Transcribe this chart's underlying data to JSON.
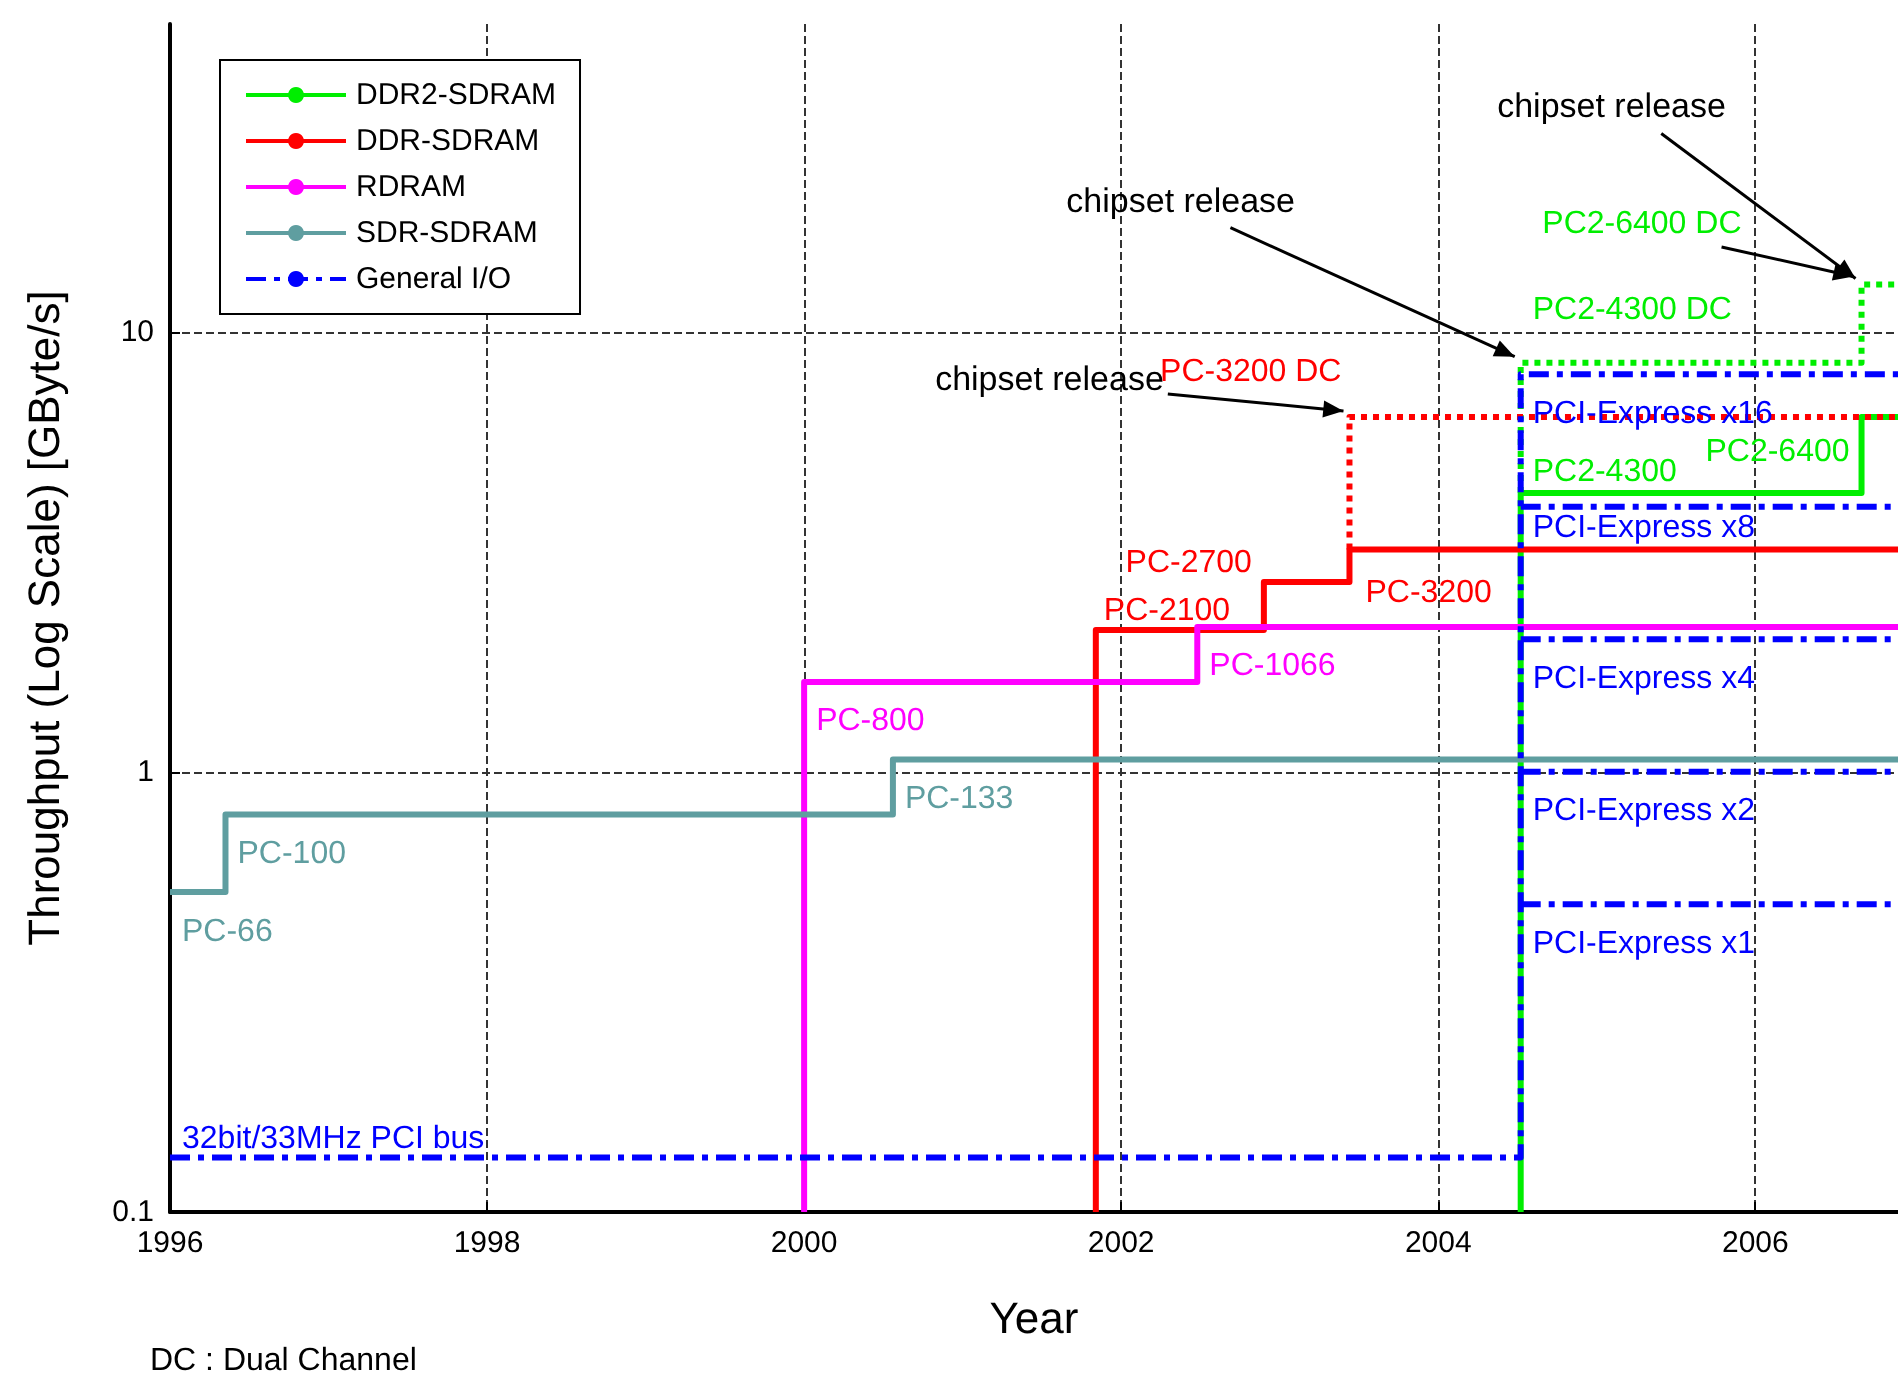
{
  "chart_data": {
    "type": "step",
    "xlabel": "Year",
    "ylabel": "Throughput (Log Scale) [GByte/s]",
    "xlim": [
      1996,
      2006.9
    ],
    "xticks": [
      1996,
      1998,
      2000,
      2002,
      2004,
      2006
    ],
    "ylim": [
      0.1,
      50
    ],
    "yticks": [
      0.1,
      1,
      10
    ],
    "log": true,
    "grid": true,
    "legend": "top left",
    "series": [
      {
        "name": "DDR2-SDRAM",
        "color": "#00ee00",
        "x": [
          2004.52,
          2004.52,
          2006.67,
          2006.9
        ],
        "values": [
          0.1,
          4.3,
          6.4,
          6.4
        ]
      },
      {
        "name": "DDR-SDRAM",
        "color": "#ff0000",
        "x": [
          2001.84,
          2001.84,
          2002.9,
          2003.44,
          2006.9
        ],
        "values": [
          0.1,
          2.1,
          2.7,
          3.2,
          3.2
        ]
      },
      {
        "name": "RDRAM",
        "color": "#ff00ff",
        "x": [
          2000,
          2000,
          2002.48,
          2006.9
        ],
        "values": [
          0.1,
          1.6,
          2.133,
          2.133
        ]
      },
      {
        "name": "SDR-SDRAM",
        "color": "#5f9ea0",
        "x": [
          1996,
          1996.35,
          2000.56,
          2006.9
        ],
        "values": [
          0.533,
          0.8,
          1.067,
          1.067
        ]
      },
      {
        "name": "General I/O",
        "color": "#0000ff",
        "line_style": "dashed",
        "x": [
          1996,
          2004.52,
          2004.52,
          2006.9
        ],
        "values": [
          0.133,
          0.133,
          8,
          8
        ]
      },
      {
        "color": "#0000ff",
        "line_style": "dashed",
        "x": [
          2004.52,
          2006.9
        ],
        "values": [
          4,
          4
        ]
      },
      {
        "color": "#0000ff",
        "line_style": "dashed",
        "x": [
          2004.52,
          2006.9
        ],
        "values": [
          2,
          2
        ]
      },
      {
        "color": "#0000ff",
        "line_style": "dashed",
        "x": [
          2004.52,
          2006.9
        ],
        "values": [
          1,
          1
        ]
      },
      {
        "color": "#0000ff",
        "line_style": "dashed",
        "x": [
          2004.52,
          2006.9
        ],
        "values": [
          0.5,
          0.5
        ]
      },
      {
        "color": "#00ee00",
        "line_style": "dotted",
        "x": [
          2004.52,
          2004.52,
          2006.67,
          2006.9
        ],
        "values": [
          4.3,
          8.5,
          12.8,
          12.8
        ]
      },
      {
        "color": "#ff0000",
        "line_style": "dotted",
        "x": [
          2003.44,
          2003.44,
          2006.9
        ],
        "values": [
          3.2,
          6.4,
          6.4
        ]
      }
    ],
    "annotations": [
      {
        "text": "chipset release",
        "x": 2003.44,
        "y": 6.4
      },
      {
        "text": "chipset release",
        "x": 2004.52,
        "y": 8.5
      },
      {
        "text": "chipset release",
        "x": 2006.67,
        "y": 12.8
      },
      {
        "text": "PC-66",
        "x": 1996,
        "y": 0.533
      },
      {
        "text": "PC-100",
        "x": 1996.35,
        "y": 0.8
      },
      {
        "text": "PC-133",
        "x": 2000.56,
        "y": 1.067
      },
      {
        "text": "PC-800",
        "x": 2000,
        "y": 1.6
      },
      {
        "text": "PC-1066",
        "x": 2002.48,
        "y": 2.133
      },
      {
        "text": "PC-2100",
        "x": 2001.84,
        "y": 2.1
      },
      {
        "text": "PC-2700",
        "x": 2002.9,
        "y": 2.7
      },
      {
        "text": "PC-3200",
        "x": 2003.44,
        "y": 3.2
      },
      {
        "text": "PC-3200 DC",
        "x": 2003.44,
        "y": 6.4
      },
      {
        "text": "PC2-4300",
        "x": 2004.52,
        "y": 4.3
      },
      {
        "text": "PC2-6400",
        "x": 2006.67,
        "y": 6.4
      },
      {
        "text": "PC2-4300 DC",
        "x": 2004.52,
        "y": 8.5
      },
      {
        "text": "PC2-6400 DC",
        "x": 2006.67,
        "y": 12.8
      },
      {
        "text": "32bit/33MHz PCI bus",
        "x": 1996,
        "y": 0.133
      },
      {
        "text": "PCI-Express x16",
        "x": 2004.52,
        "y": 8
      },
      {
        "text": "PCI-Express x8",
        "x": 2004.52,
        "y": 4
      },
      {
        "text": "PCI-Express x4",
        "x": 2004.52,
        "y": 2
      },
      {
        "text": "PCI-Express x2",
        "x": 2004.52,
        "y": 1
      },
      {
        "text": "PCI-Express x1",
        "x": 2004.52,
        "y": 0.5
      },
      "DC : Dual Channel"
    ]
  }
}
